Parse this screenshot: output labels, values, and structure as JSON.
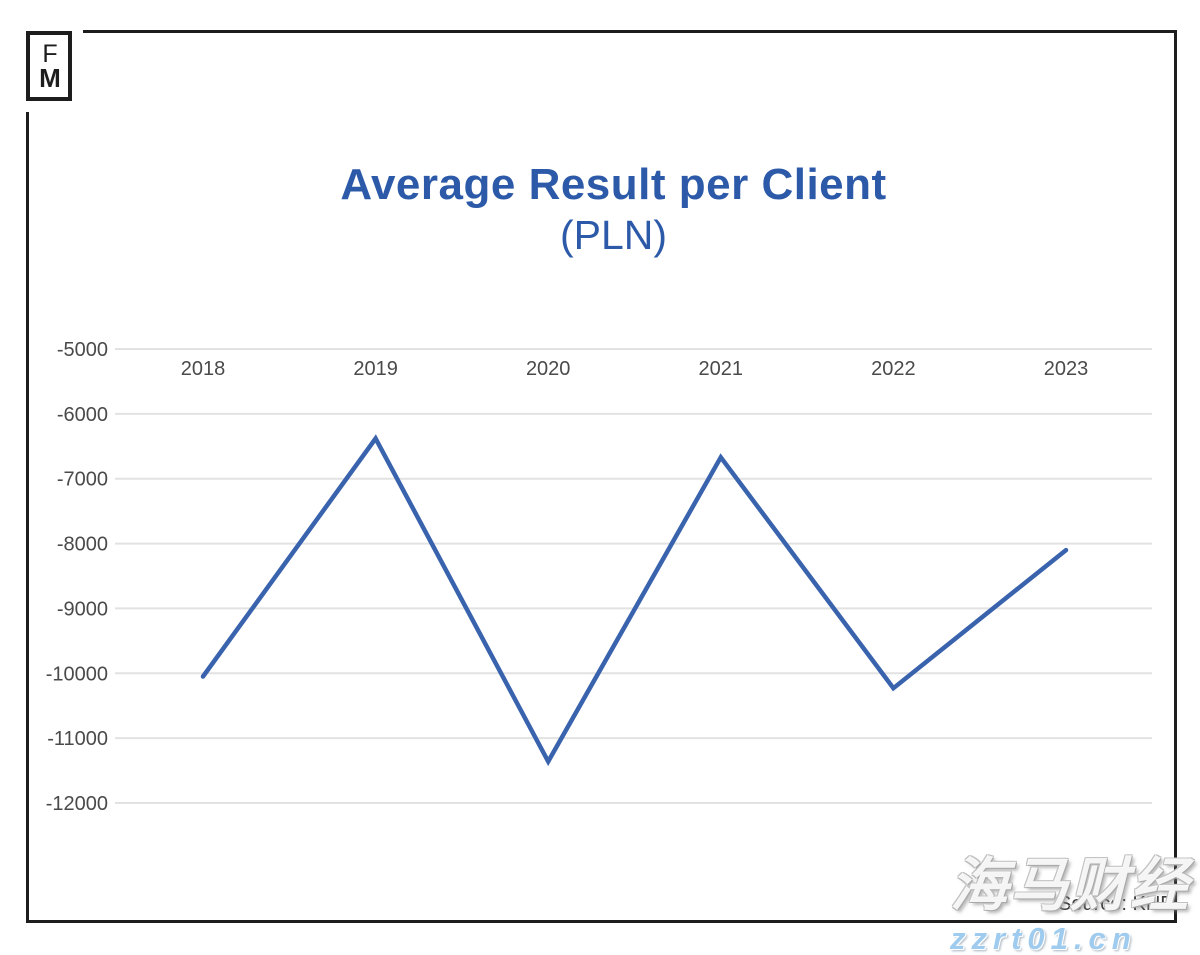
{
  "logo": {
    "letter1": "F",
    "letter2": "M"
  },
  "title": {
    "line1": "Average Result per Client",
    "line2": "(PLN)",
    "color": "#2c5aa8"
  },
  "chart_data": {
    "type": "line",
    "categories": [
      "2018",
      "2019",
      "2020",
      "2021",
      "2022",
      "2023"
    ],
    "series": [
      {
        "name": "Average Result per Client (PLN)",
        "values": [
          -10050,
          -6380,
          -11360,
          -6670,
          -10230,
          -8100
        ]
      }
    ],
    "title": "Average Result per Client (PLN)",
    "xlabel": "",
    "ylabel": "",
    "ylim": [
      -12000,
      -5000
    ],
    "yticks": [
      -5000,
      -6000,
      -7000,
      -8000,
      -9000,
      -10000,
      -11000,
      -12000
    ],
    "grid": "horizontal-only",
    "legend": "none",
    "line_color": "#3a63ae",
    "gridline_color": "#e2e2e2",
    "tick_label_color": "#4a4a4a"
  },
  "source": {
    "label": "Source: KNF"
  },
  "watermark": {
    "line1": "海马财经",
    "line2": "zzrt01.cn"
  }
}
